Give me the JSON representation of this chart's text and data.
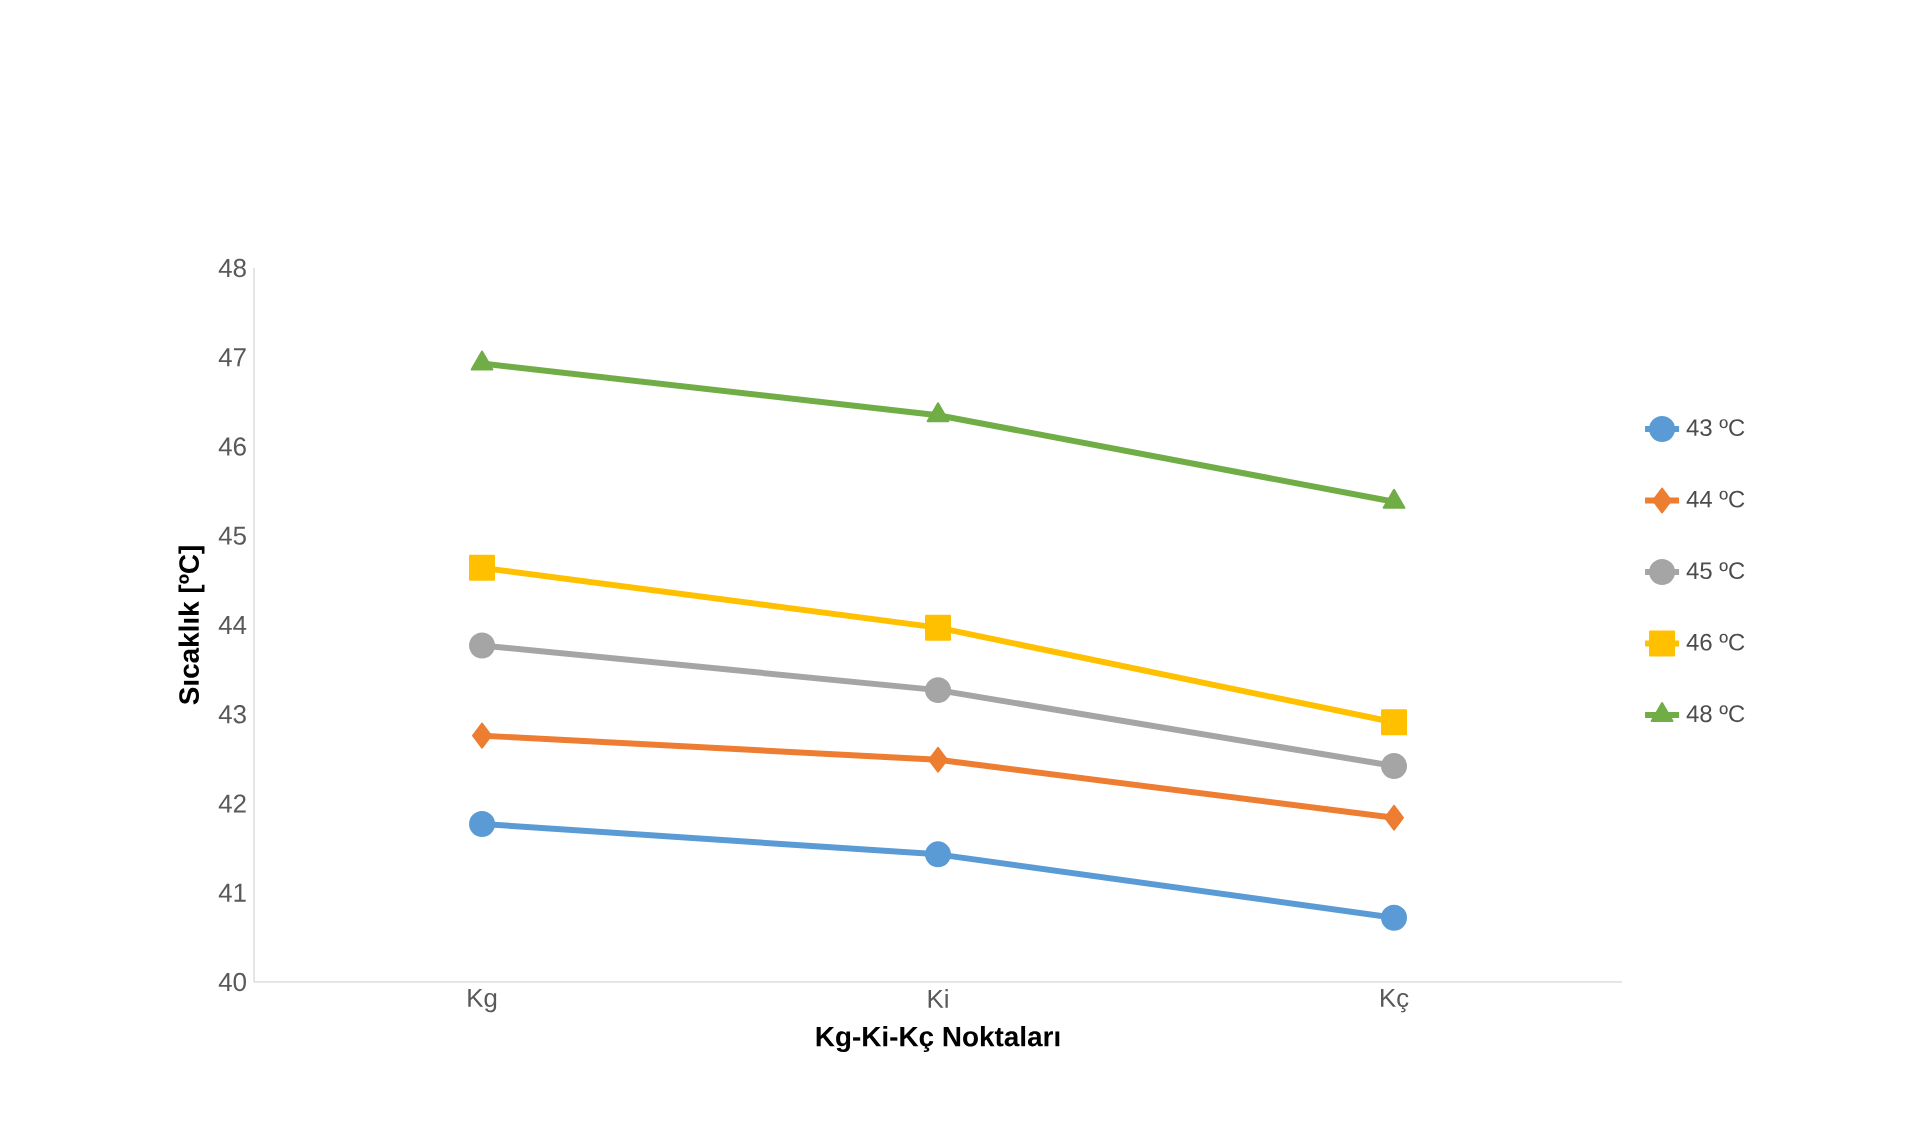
{
  "chart_data": {
    "type": "line",
    "xlabel": "Kg-Ki-Kç Noktaları",
    "ylabel": "Sıcaklık [ºC]",
    "categories": [
      "Kg",
      "Ki",
      "Kç"
    ],
    "series": [
      {
        "name": "43 ºC",
        "color": "#5b9bd5",
        "marker": "circle",
        "values": [
          41.77,
          41.43,
          40.72
        ]
      },
      {
        "name": "44 ºC",
        "color": "#ed7d31",
        "marker": "diamond",
        "values": [
          42.76,
          42.49,
          41.84
        ]
      },
      {
        "name": "45 ºC",
        "color": "#a5a5a5",
        "marker": "circle",
        "values": [
          43.77,
          43.27,
          42.42
        ]
      },
      {
        "name": "46 ºC",
        "color": "#ffc000",
        "marker": "square",
        "values": [
          44.64,
          43.97,
          42.91
        ]
      },
      {
        "name": "48 ºC",
        "color": "#70ad47",
        "marker": "triangle",
        "values": [
          46.93,
          46.35,
          45.38
        ]
      }
    ],
    "ylim": [
      40,
      48
    ],
    "yticks": [
      40,
      41,
      42,
      43,
      44,
      45,
      46,
      47,
      48
    ],
    "grid": false,
    "legend": "right",
    "line_style": "solid"
  }
}
